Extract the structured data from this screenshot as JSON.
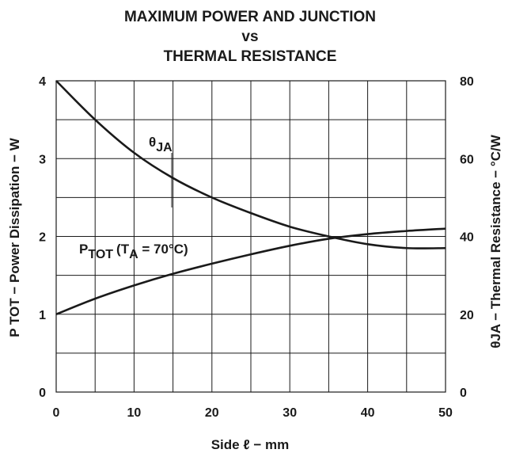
{
  "chart_data": {
    "type": "line",
    "title_lines": [
      "MAXIMUM POWER AND JUNCTION",
      "vs",
      "THERMAL RESISTANCE"
    ],
    "xlabel": "Side ℓ − mm",
    "ylabel_left": "P TOT − Power Dissipation − W",
    "ylabel_right": "θJA − Thermal Resistance − °C/W",
    "xlim": [
      0,
      50
    ],
    "ylim_left": [
      0,
      4
    ],
    "ylim_right": [
      0,
      80
    ],
    "x_ticks": [
      "0",
      "10",
      "20",
      "30",
      "40",
      "50"
    ],
    "y_ticks_left": [
      "0",
      "1",
      "2",
      "3",
      "4"
    ],
    "y_ticks_right": [
      "0",
      "20",
      "40",
      "60",
      "80"
    ],
    "grid": true,
    "series": [
      {
        "name": "θJA",
        "axis": "right",
        "x": [
          0,
          5,
          10,
          15,
          20,
          25,
          30,
          35,
          40,
          45,
          50
        ],
        "values": [
          80,
          70,
          61.5,
          55,
          50,
          46,
          42.5,
          40,
          38,
          37,
          37
        ]
      },
      {
        "name": "PTOT (TA = 70°C)",
        "axis": "left",
        "x": [
          0,
          5,
          10,
          15,
          20,
          25,
          30,
          35,
          40,
          45,
          50
        ],
        "values": [
          1.0,
          1.2,
          1.37,
          1.52,
          1.65,
          1.77,
          1.88,
          1.97,
          2.03,
          2.07,
          2.1
        ]
      }
    ],
    "annotations": {
      "theta_main": "θ",
      "theta_sub": "JA",
      "ptot_main": "P",
      "ptot_sub": "TOT",
      "ptot_paren_open": "(T",
      "ptot_ta_sub": "A",
      "ptot_rest": " = 70°C)"
    }
  }
}
